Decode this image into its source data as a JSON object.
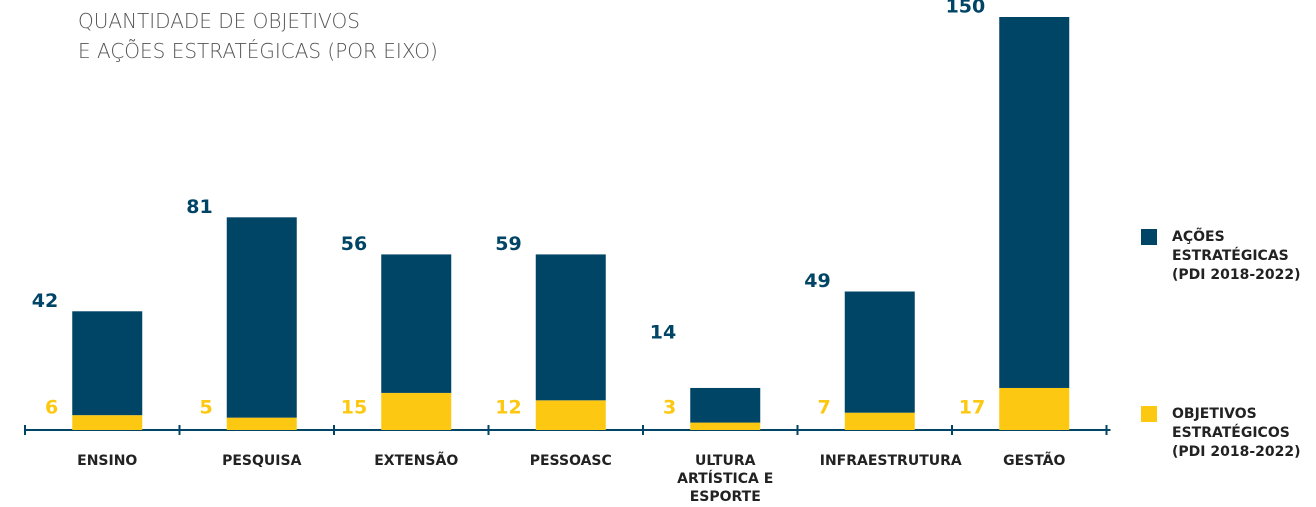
{
  "chart_data": {
    "type": "stacked_bar",
    "title": [
      "QUANTIDADE DE OBJETIVOS",
      "E AÇÕES ESTRATÉGICAS (POR EIXO)"
    ],
    "categories": [
      "ENSINO",
      "PESQUISA",
      "EXTENSÃO",
      "PESSOASC",
      "ULTURA ARTÍSTICA E ESPORTE",
      "INFRAESTRUTURA",
      "GESTÃO"
    ],
    "series": [
      {
        "name": "OBJETIVOS ESTRATÉGICOS (PDI 2018-2022)",
        "color": "#fcc812",
        "values": [
          6,
          5,
          15,
          12,
          3,
          7,
          17
        ]
      },
      {
        "name": "AÇÕES ESTRATÉGICAS (PDI 2018-2022)",
        "color": "#004466",
        "values": [
          42,
          81,
          56,
          59,
          14,
          49,
          150
        ]
      }
    ],
    "legend": "right"
  }
}
